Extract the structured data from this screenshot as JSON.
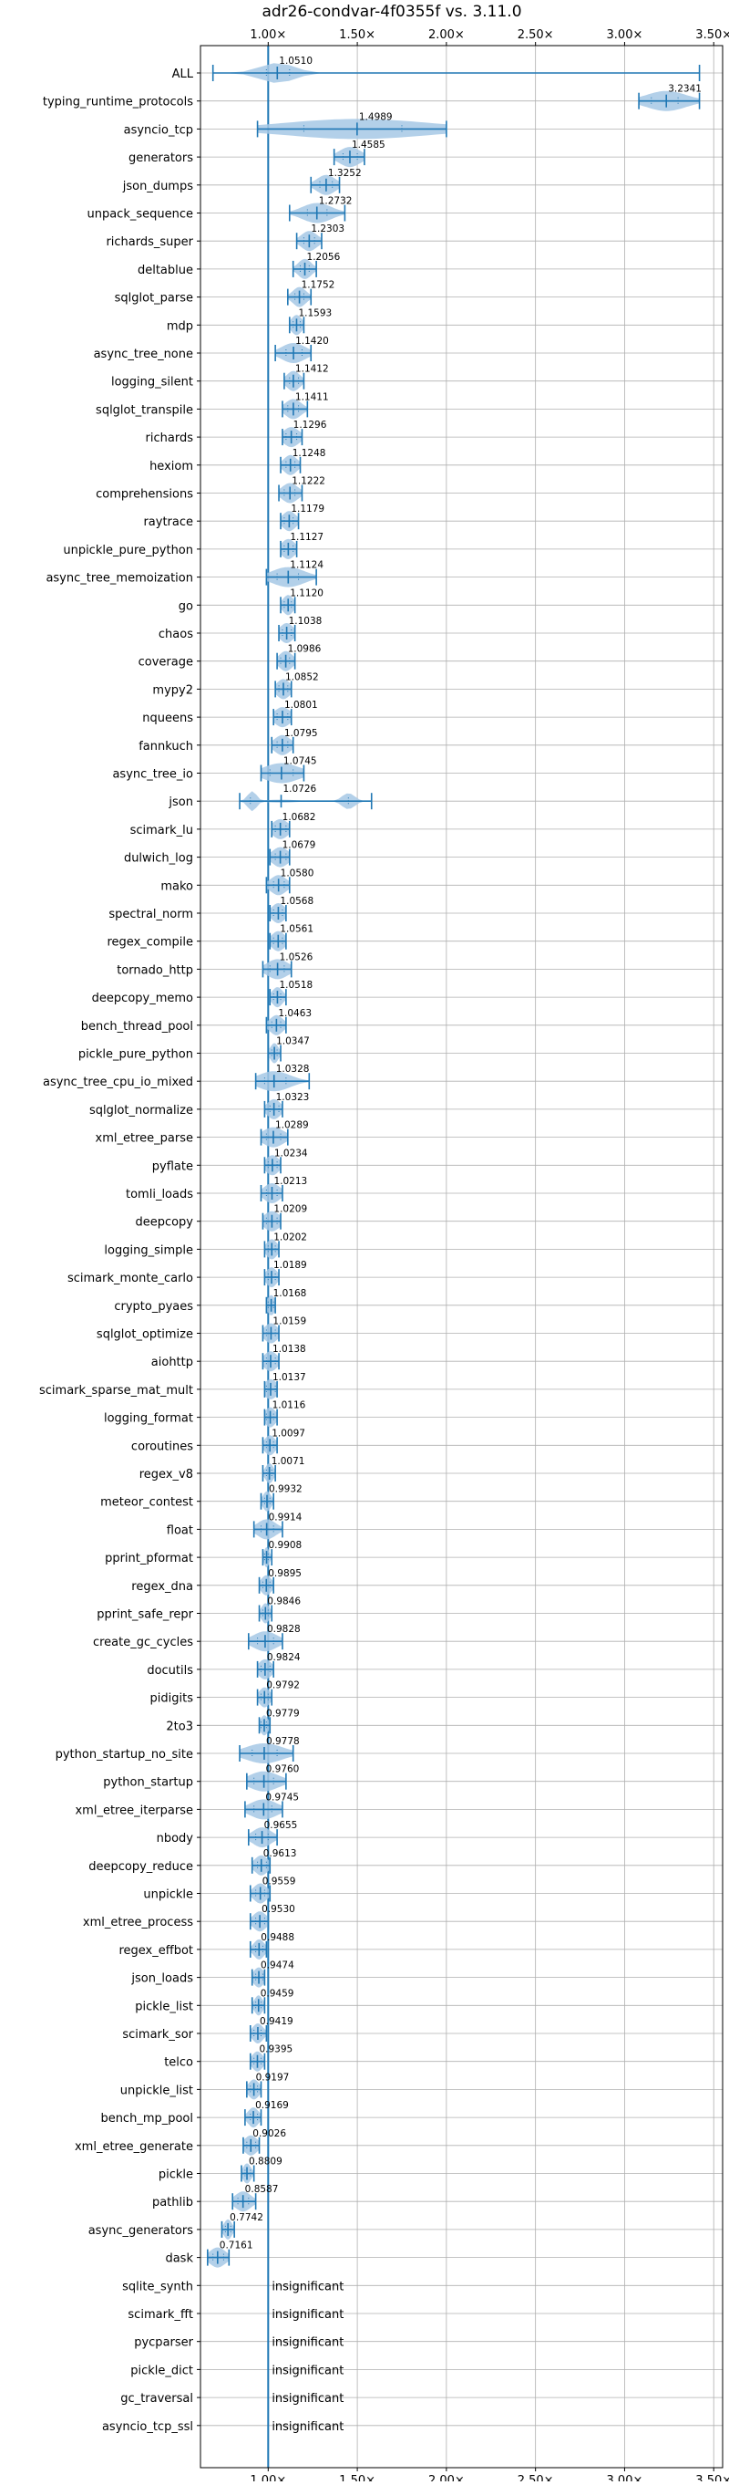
{
  "chart_data": {
    "type": "violin",
    "title": "adr26-condvar-4f0355f vs. 3.11.0",
    "xlabel": "",
    "ylabel": "",
    "xlim": [
      0.62,
      3.55
    ],
    "x_ticks": [
      1.0,
      1.5,
      2.0,
      2.5,
      3.0,
      3.5
    ],
    "x_tick_labels": [
      "1.00×",
      "1.50×",
      "2.00×",
      "2.50×",
      "3.00×",
      "3.50×"
    ],
    "x_tick_labels_position": "top and bottom",
    "reference_line": 1.0,
    "grid": true,
    "legend": "none",
    "colors": {
      "violin": "#a6c8e5",
      "whisker": "#1f77b4",
      "grid": "#b0b0b0",
      "text": "#000000"
    },
    "insignificant_label": "insignificant",
    "benchmarks": [
      {
        "name": "ALL",
        "label": "1.0510",
        "median": 1.051,
        "min": 0.69,
        "max": 3.42,
        "q1": 0.99,
        "q3": 1.12
      },
      {
        "name": "typing_runtime_protocols",
        "label": "3.2341",
        "median": 3.2341,
        "min": 3.08,
        "max": 3.42,
        "q1": 3.15,
        "q3": 3.3
      },
      {
        "name": "asyncio_tcp",
        "label": "1.4989",
        "median": 1.4989,
        "min": 0.94,
        "max": 2.0,
        "q1": 1.2,
        "q3": 1.75
      },
      {
        "name": "generators",
        "label": "1.4585",
        "median": 1.4585,
        "min": 1.37,
        "max": 1.54,
        "q1": 1.42,
        "q3": 1.5
      },
      {
        "name": "json_dumps",
        "label": "1.3252",
        "median": 1.3252,
        "min": 1.24,
        "max": 1.4,
        "q1": 1.29,
        "q3": 1.36
      },
      {
        "name": "unpack_sequence",
        "label": "1.2732",
        "median": 1.2732,
        "min": 1.12,
        "max": 1.43,
        "q1": 1.22,
        "q3": 1.33
      },
      {
        "name": "richards_super",
        "label": "1.2303",
        "median": 1.2303,
        "min": 1.16,
        "max": 1.3,
        "q1": 1.2,
        "q3": 1.26
      },
      {
        "name": "deltablue",
        "label": "1.2056",
        "median": 1.2056,
        "min": 1.14,
        "max": 1.27,
        "q1": 1.18,
        "q3": 1.23
      },
      {
        "name": "sqlglot_parse",
        "label": "1.1752",
        "median": 1.1752,
        "min": 1.11,
        "max": 1.24,
        "q1": 1.15,
        "q3": 1.2
      },
      {
        "name": "mdp",
        "label": "1.1593",
        "median": 1.1593,
        "min": 1.12,
        "max": 1.2,
        "q1": 1.14,
        "q3": 1.18
      },
      {
        "name": "async_tree_none",
        "label": "1.1420",
        "median": 1.142,
        "min": 1.04,
        "max": 1.24,
        "q1": 1.1,
        "q3": 1.19
      },
      {
        "name": "logging_silent",
        "label": "1.1412",
        "median": 1.1412,
        "min": 1.09,
        "max": 1.2,
        "q1": 1.12,
        "q3": 1.17
      },
      {
        "name": "sqlglot_transpile",
        "label": "1.1411",
        "median": 1.1411,
        "min": 1.08,
        "max": 1.22,
        "q1": 1.11,
        "q3": 1.17
      },
      {
        "name": "richards",
        "label": "1.1296",
        "median": 1.1296,
        "min": 1.08,
        "max": 1.19,
        "q1": 1.1,
        "q3": 1.16
      },
      {
        "name": "hexiom",
        "label": "1.1248",
        "median": 1.1248,
        "min": 1.07,
        "max": 1.18,
        "q1": 1.1,
        "q3": 1.15
      },
      {
        "name": "comprehensions",
        "label": "1.1222",
        "median": 1.1222,
        "min": 1.06,
        "max": 1.19,
        "q1": 1.09,
        "q3": 1.15
      },
      {
        "name": "raytrace",
        "label": "1.1179",
        "median": 1.1179,
        "min": 1.07,
        "max": 1.17,
        "q1": 1.09,
        "q3": 1.14
      },
      {
        "name": "unpickle_pure_python",
        "label": "1.1127",
        "median": 1.1127,
        "min": 1.07,
        "max": 1.16,
        "q1": 1.09,
        "q3": 1.14
      },
      {
        "name": "async_tree_memoization",
        "label": "1.1124",
        "median": 1.1124,
        "min": 0.99,
        "max": 1.27,
        "q1": 1.05,
        "q3": 1.17
      },
      {
        "name": "go",
        "label": "1.1120",
        "median": 1.112,
        "min": 1.07,
        "max": 1.15,
        "q1": 1.09,
        "q3": 1.13
      },
      {
        "name": "chaos",
        "label": "1.1038",
        "median": 1.1038,
        "min": 1.06,
        "max": 1.15,
        "q1": 1.08,
        "q3": 1.13
      },
      {
        "name": "coverage",
        "label": "1.0986",
        "median": 1.0986,
        "min": 1.05,
        "max": 1.15,
        "q1": 1.07,
        "q3": 1.12
      },
      {
        "name": "mypy2",
        "label": "1.0852",
        "median": 1.0852,
        "min": 1.04,
        "max": 1.13,
        "q1": 1.06,
        "q3": 1.11
      },
      {
        "name": "nqueens",
        "label": "1.0801",
        "median": 1.0801,
        "min": 1.03,
        "max": 1.13,
        "q1": 1.05,
        "q3": 1.11
      },
      {
        "name": "fannkuch",
        "label": "1.0795",
        "median": 1.0795,
        "min": 1.02,
        "max": 1.14,
        "q1": 1.05,
        "q3": 1.11
      },
      {
        "name": "async_tree_io",
        "label": "1.0745",
        "median": 1.0745,
        "min": 0.96,
        "max": 1.2,
        "q1": 1.01,
        "q3": 1.14
      },
      {
        "name": "json",
        "label": "1.0726",
        "median": 1.0726,
        "min": 0.84,
        "max": 1.58,
        "q1": 0.9,
        "q3": 1.45,
        "bimodal": true
      },
      {
        "name": "scimark_lu",
        "label": "1.0682",
        "median": 1.0682,
        "min": 1.02,
        "max": 1.12,
        "q1": 1.04,
        "q3": 1.1
      },
      {
        "name": "dulwich_log",
        "label": "1.0679",
        "median": 1.0679,
        "min": 1.01,
        "max": 1.12,
        "q1": 1.04,
        "q3": 1.1
      },
      {
        "name": "mako",
        "label": "1.0580",
        "median": 1.058,
        "min": 0.99,
        "max": 1.12,
        "q1": 1.03,
        "q3": 1.09
      },
      {
        "name": "spectral_norm",
        "label": "1.0568",
        "median": 1.0568,
        "min": 1.01,
        "max": 1.1,
        "q1": 1.03,
        "q3": 1.08
      },
      {
        "name": "regex_compile",
        "label": "1.0561",
        "median": 1.0561,
        "min": 1.01,
        "max": 1.1,
        "q1": 1.03,
        "q3": 1.08
      },
      {
        "name": "tornado_http",
        "label": "1.0526",
        "median": 1.0526,
        "min": 0.97,
        "max": 1.13,
        "q1": 1.01,
        "q3": 1.09
      },
      {
        "name": "deepcopy_memo",
        "label": "1.0518",
        "median": 1.0518,
        "min": 1.01,
        "max": 1.1,
        "q1": 1.03,
        "q3": 1.07
      },
      {
        "name": "bench_thread_pool",
        "label": "1.0463",
        "median": 1.0463,
        "min": 0.99,
        "max": 1.1,
        "q1": 1.02,
        "q3": 1.07
      },
      {
        "name": "pickle_pure_python",
        "label": "1.0347",
        "median": 1.0347,
        "min": 1.0,
        "max": 1.07,
        "q1": 1.02,
        "q3": 1.05
      },
      {
        "name": "async_tree_cpu_io_mixed",
        "label": "1.0328",
        "median": 1.0328,
        "min": 0.93,
        "max": 1.23,
        "q1": 0.98,
        "q3": 1.1
      },
      {
        "name": "sqlglot_normalize",
        "label": "1.0323",
        "median": 1.0323,
        "min": 0.98,
        "max": 1.08,
        "q1": 1.01,
        "q3": 1.06
      },
      {
        "name": "xml_etree_parse",
        "label": "1.0289",
        "median": 1.0289,
        "min": 0.96,
        "max": 1.11,
        "q1": 0.99,
        "q3": 1.07
      },
      {
        "name": "pyflate",
        "label": "1.0234",
        "median": 1.0234,
        "min": 0.98,
        "max": 1.07,
        "q1": 1.0,
        "q3": 1.05
      },
      {
        "name": "tomli_loads",
        "label": "1.0213",
        "median": 1.0213,
        "min": 0.96,
        "max": 1.08,
        "q1": 0.99,
        "q3": 1.05
      },
      {
        "name": "deepcopy",
        "label": "1.0209",
        "median": 1.0209,
        "min": 0.97,
        "max": 1.07,
        "q1": 0.99,
        "q3": 1.05
      },
      {
        "name": "logging_simple",
        "label": "1.0202",
        "median": 1.0202,
        "min": 0.98,
        "max": 1.06,
        "q1": 1.0,
        "q3": 1.04
      },
      {
        "name": "scimark_monte_carlo",
        "label": "1.0189",
        "median": 1.0189,
        "min": 0.98,
        "max": 1.06,
        "q1": 1.0,
        "q3": 1.04
      },
      {
        "name": "crypto_pyaes",
        "label": "1.0168",
        "median": 1.0168,
        "min": 0.99,
        "max": 1.04,
        "q1": 1.0,
        "q3": 1.03
      },
      {
        "name": "sqlglot_optimize",
        "label": "1.0159",
        "median": 1.0159,
        "min": 0.97,
        "max": 1.06,
        "q1": 0.99,
        "q3": 1.04
      },
      {
        "name": "aiohttp",
        "label": "1.0138",
        "median": 1.0138,
        "min": 0.97,
        "max": 1.06,
        "q1": 0.99,
        "q3": 1.04
      },
      {
        "name": "scimark_sparse_mat_mult",
        "label": "1.0137",
        "median": 1.0137,
        "min": 0.98,
        "max": 1.05,
        "q1": 0.99,
        "q3": 1.04
      },
      {
        "name": "logging_format",
        "label": "1.0116",
        "median": 1.0116,
        "min": 0.98,
        "max": 1.05,
        "q1": 0.99,
        "q3": 1.03
      },
      {
        "name": "coroutines",
        "label": "1.0097",
        "median": 1.0097,
        "min": 0.97,
        "max": 1.05,
        "q1": 0.99,
        "q3": 1.03
      },
      {
        "name": "regex_v8",
        "label": "1.0071",
        "median": 1.0071,
        "min": 0.97,
        "max": 1.04,
        "q1": 0.99,
        "q3": 1.02
      },
      {
        "name": "meteor_contest",
        "label": "0.9932",
        "median": 0.9932,
        "min": 0.96,
        "max": 1.03,
        "q1": 0.98,
        "q3": 1.01
      },
      {
        "name": "float",
        "label": "0.9914",
        "median": 0.9914,
        "min": 0.92,
        "max": 1.08,
        "q1": 0.96,
        "q3": 1.03
      },
      {
        "name": "pprint_pformat",
        "label": "0.9908",
        "median": 0.9908,
        "min": 0.97,
        "max": 1.02,
        "q1": 0.98,
        "q3": 1.0
      },
      {
        "name": "regex_dna",
        "label": "0.9895",
        "median": 0.9895,
        "min": 0.95,
        "max": 1.03,
        "q1": 0.97,
        "q3": 1.01
      },
      {
        "name": "pprint_safe_repr",
        "label": "0.9846",
        "median": 0.9846,
        "min": 0.95,
        "max": 1.02,
        "q1": 0.97,
        "q3": 1.0
      },
      {
        "name": "create_gc_cycles",
        "label": "0.9828",
        "median": 0.9828,
        "min": 0.89,
        "max": 1.08,
        "q1": 0.94,
        "q3": 1.03
      },
      {
        "name": "docutils",
        "label": "0.9824",
        "median": 0.9824,
        "min": 0.94,
        "max": 1.03,
        "q1": 0.96,
        "q3": 1.01
      },
      {
        "name": "pidigits",
        "label": "0.9792",
        "median": 0.9792,
        "min": 0.94,
        "max": 1.02,
        "q1": 0.96,
        "q3": 1.0
      },
      {
        "name": "2to3",
        "label": "0.9779",
        "median": 0.9779,
        "min": 0.95,
        "max": 1.01,
        "q1": 0.96,
        "q3": 0.99
      },
      {
        "name": "python_startup_no_site",
        "label": "0.9778",
        "median": 0.9778,
        "min": 0.84,
        "max": 1.14,
        "q1": 0.91,
        "q3": 1.05
      },
      {
        "name": "python_startup",
        "label": "0.9760",
        "median": 0.976,
        "min": 0.88,
        "max": 1.1,
        "q1": 0.92,
        "q3": 1.03
      },
      {
        "name": "xml_etree_iterparse",
        "label": "0.9745",
        "median": 0.9745,
        "min": 0.87,
        "max": 1.08,
        "q1": 0.92,
        "q3": 1.02
      },
      {
        "name": "nbody",
        "label": "0.9655",
        "median": 0.9655,
        "min": 0.89,
        "max": 1.05,
        "q1": 0.93,
        "q3": 1.0
      },
      {
        "name": "deepcopy_reduce",
        "label": "0.9613",
        "median": 0.9613,
        "min": 0.91,
        "max": 1.01,
        "q1": 0.94,
        "q3": 0.99
      },
      {
        "name": "unpickle",
        "label": "0.9559",
        "median": 0.9559,
        "min": 0.9,
        "max": 1.01,
        "q1": 0.93,
        "q3": 0.98
      },
      {
        "name": "xml_etree_process",
        "label": "0.9530",
        "median": 0.953,
        "min": 0.9,
        "max": 1.0,
        "q1": 0.93,
        "q3": 0.98
      },
      {
        "name": "regex_effbot",
        "label": "0.9488",
        "median": 0.9488,
        "min": 0.9,
        "max": 0.99,
        "q1": 0.93,
        "q3": 0.97
      },
      {
        "name": "json_loads",
        "label": "0.9474",
        "median": 0.9474,
        "min": 0.91,
        "max": 0.98,
        "q1": 0.93,
        "q3": 0.97
      },
      {
        "name": "pickle_list",
        "label": "0.9459",
        "median": 0.9459,
        "min": 0.91,
        "max": 0.98,
        "q1": 0.93,
        "q3": 0.96
      },
      {
        "name": "scimark_sor",
        "label": "0.9419",
        "median": 0.9419,
        "min": 0.9,
        "max": 0.99,
        "q1": 0.92,
        "q3": 0.96
      },
      {
        "name": "telco",
        "label": "0.9395",
        "median": 0.9395,
        "min": 0.9,
        "max": 0.98,
        "q1": 0.92,
        "q3": 0.96
      },
      {
        "name": "unpickle_list",
        "label": "0.9197",
        "median": 0.9197,
        "min": 0.88,
        "max": 0.96,
        "q1": 0.9,
        "q3": 0.94
      },
      {
        "name": "bench_mp_pool",
        "label": "0.9169",
        "median": 0.9169,
        "min": 0.87,
        "max": 0.96,
        "q1": 0.9,
        "q3": 0.94
      },
      {
        "name": "xml_etree_generate",
        "label": "0.9026",
        "median": 0.9026,
        "min": 0.86,
        "max": 0.95,
        "q1": 0.88,
        "q3": 0.93
      },
      {
        "name": "pickle",
        "label": "0.8809",
        "median": 0.8809,
        "min": 0.85,
        "max": 0.92,
        "q1": 0.87,
        "q3": 0.9
      },
      {
        "name": "pathlib",
        "label": "0.8587",
        "median": 0.8587,
        "min": 0.8,
        "max": 0.93,
        "q1": 0.83,
        "q3": 0.89
      },
      {
        "name": "async_generators",
        "label": "0.7742",
        "median": 0.7742,
        "min": 0.74,
        "max": 0.81,
        "q1": 0.76,
        "q3": 0.79
      },
      {
        "name": "dask",
        "label": "0.7161",
        "median": 0.7161,
        "min": 0.66,
        "max": 0.78,
        "q1": 0.69,
        "q3": 0.75
      },
      {
        "name": "sqlite_synth",
        "label": "insignificant",
        "insignificant": true
      },
      {
        "name": "scimark_fft",
        "label": "insignificant",
        "insignificant": true
      },
      {
        "name": "pycparser",
        "label": "insignificant",
        "insignificant": true
      },
      {
        "name": "pickle_dict",
        "label": "insignificant",
        "insignificant": true
      },
      {
        "name": "gc_traversal",
        "label": "insignificant",
        "insignificant": true
      },
      {
        "name": "asyncio_tcp_ssl",
        "label": "insignificant",
        "insignificant": true
      }
    ]
  }
}
